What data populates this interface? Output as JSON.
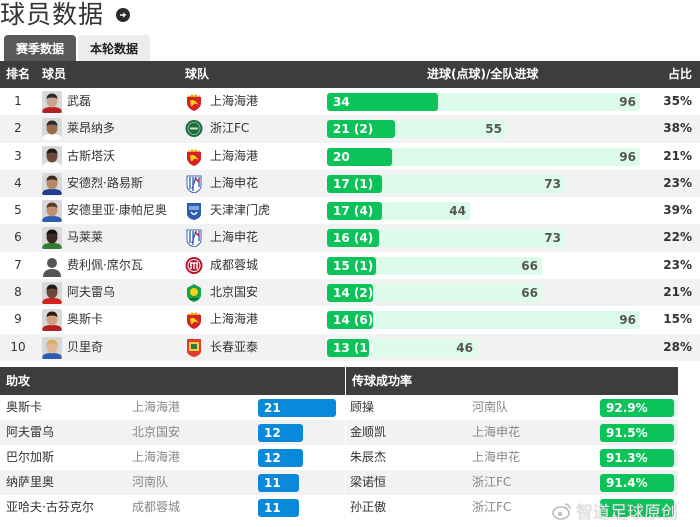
{
  "header": {
    "title": "球员数据",
    "arrow_icon": "arrow-right-circle-icon"
  },
  "tabs": [
    {
      "label": "赛季数据",
      "active": true
    },
    {
      "label": "本轮数据",
      "active": false
    }
  ],
  "goals_table": {
    "columns": {
      "rank": "排名",
      "player": "球员",
      "team": "球队",
      "goals": "进球(点球)/全队进球",
      "ratio": "占比"
    },
    "max_team_goals": 96,
    "colors": {
      "bar": "#0cc35a",
      "track": "#dcfbeb"
    },
    "rows": [
      {
        "rank": "1",
        "player": "武磊",
        "team": "上海海港",
        "team_logo": "shanghai-port",
        "goals": 34,
        "goals_label": "34",
        "team_goals": 96,
        "team_goals_label": "96",
        "ratio": "35%"
      },
      {
        "rank": "2",
        "player": "莱昂纳多",
        "team": "浙江FC",
        "team_logo": "zhejiang",
        "goals": 21,
        "goals_label": "21 (2)",
        "team_goals": 55,
        "team_goals_label": "55",
        "ratio": "38%"
      },
      {
        "rank": "3",
        "player": "古斯塔沃",
        "team": "上海海港",
        "team_logo": "shanghai-port",
        "goals": 20,
        "goals_label": "20",
        "team_goals": 96,
        "team_goals_label": "96",
        "ratio": "21%"
      },
      {
        "rank": "4",
        "player": "安德烈·路易斯",
        "team": "上海申花",
        "team_logo": "shenhua",
        "goals": 17,
        "goals_label": "17 (1)",
        "team_goals": 73,
        "team_goals_label": "73",
        "ratio": "23%"
      },
      {
        "rank": "5",
        "player": "安德里亚·康帕尼奥",
        "team": "天津津门虎",
        "team_logo": "tianjin",
        "goals": 17,
        "goals_label": "17 (4)",
        "team_goals": 44,
        "team_goals_label": "44",
        "ratio": "39%"
      },
      {
        "rank": "6",
        "player": "马莱莱",
        "team": "上海申花",
        "team_logo": "shenhua",
        "goals": 16,
        "goals_label": "16 (4)",
        "team_goals": 73,
        "team_goals_label": "73",
        "ratio": "22%"
      },
      {
        "rank": "7",
        "player": "费利佩·席尔瓦",
        "team": "成都蓉城",
        "team_logo": "chengdu",
        "goals": 15,
        "goals_label": "15 (1)",
        "team_goals": 66,
        "team_goals_label": "66",
        "ratio": "23%"
      },
      {
        "rank": "8",
        "player": "阿夫雷乌",
        "team": "北京国安",
        "team_logo": "beijing",
        "goals": 14,
        "goals_label": "14 (2)",
        "team_goals": 66,
        "team_goals_label": "66",
        "ratio": "21%"
      },
      {
        "rank": "9",
        "player": "奥斯卡",
        "team": "上海海港",
        "team_logo": "shanghai-port",
        "goals": 14,
        "goals_label": "14 (6)",
        "team_goals": 96,
        "team_goals_label": "96",
        "ratio": "15%"
      },
      {
        "rank": "10",
        "player": "贝里奇",
        "team": "长春亚泰",
        "team_logo": "changchun",
        "goals": 13,
        "goals_label": "13 (1)",
        "team_goals": 46,
        "team_goals_label": "46",
        "ratio": "28%"
      }
    ]
  },
  "assists": {
    "title": "助攻",
    "bar_color": "#0a88da",
    "max": 21,
    "rows": [
      {
        "player": "奥斯卡",
        "team": "上海海港",
        "value": 21,
        "label": "21"
      },
      {
        "player": "阿夫雷乌",
        "team": "北京国安",
        "value": 12,
        "label": "12"
      },
      {
        "player": "巴尔加斯",
        "team": "上海海港",
        "value": 12,
        "label": "12"
      },
      {
        "player": "纳萨里奥",
        "team": "河南队",
        "value": 11,
        "label": "11"
      },
      {
        "player": "亚哈夫·古芬克尔",
        "team": "成都蓉城",
        "value": 11,
        "label": "11"
      }
    ]
  },
  "pass_accuracy": {
    "title": "传球成功率",
    "bar_color": "#0cc35a",
    "rows": [
      {
        "player": "顾操",
        "team": "河南队",
        "value": 92.9,
        "label": "92.9%"
      },
      {
        "player": "金顺凯",
        "team": "上海申花",
        "value": 91.5,
        "label": "91.5%"
      },
      {
        "player": "朱辰杰",
        "team": "上海申花",
        "value": 91.3,
        "label": "91.3%"
      },
      {
        "player": "梁诺恒",
        "team": "浙江FC",
        "value": 91.4,
        "label": "91.4%"
      },
      {
        "player": "孙正傲",
        "team": "浙江FC",
        "value": null,
        "label": ""
      }
    ]
  },
  "watermark": {
    "text": "智道足球原创",
    "icon": "weibo-icon"
  }
}
